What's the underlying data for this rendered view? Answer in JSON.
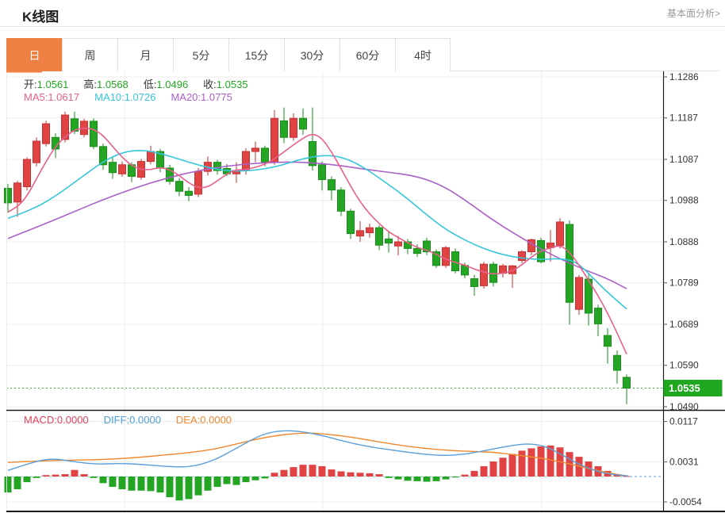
{
  "header": {
    "title": "K线图",
    "link_label": "基本面分析>"
  },
  "toolbar": {
    "tabs": [
      {
        "label": "日",
        "active": true
      },
      {
        "label": "周",
        "active": false
      },
      {
        "label": "月",
        "active": false
      },
      {
        "label": "5分",
        "active": false
      },
      {
        "label": "15分",
        "active": false
      },
      {
        "label": "30分",
        "active": false
      },
      {
        "label": "60分",
        "active": false
      },
      {
        "label": "4时",
        "active": false
      }
    ]
  },
  "legend": {
    "ohlc": [
      {
        "label": "开:",
        "value": "1.0561"
      },
      {
        "label": "高:",
        "value": "1.0568"
      },
      {
        "label": "低:",
        "value": "1.0496"
      },
      {
        "label": "收:",
        "value": "1.0535"
      }
    ],
    "ma": [
      {
        "label": "MA5:",
        "value": "1.0617",
        "color": "#e8608c"
      },
      {
        "label": "MA10:",
        "value": "1.0726",
        "color": "#36c6dc"
      },
      {
        "label": "MA20:",
        "value": "1.0775",
        "color": "#aa60c8"
      }
    ],
    "macd": [
      {
        "label": "MACD:",
        "value": "0.0000",
        "color": "#e0435c"
      },
      {
        "label": "DIFF:",
        "value": "0.0000",
        "color": "#4a9fd8"
      },
      {
        "label": "DEA:",
        "value": "0.0000",
        "color": "#f0882e"
      }
    ]
  },
  "colors": {
    "accent_orange": "#f08145",
    "up_red": "#e04343",
    "up_red_border": "#cc2f2f",
    "down_green": "#24a524",
    "down_green_border": "#168f16",
    "ohlc_value_green": "#21a81f",
    "ma5": "#e8608c",
    "ma10": "#36c6dc",
    "ma20": "#aa60c8",
    "diff_blue": "#5b9fd8",
    "dea_orange": "#f0882e",
    "price_badge_bg": "#1fa71f",
    "price_dash_green": "#35b035",
    "macd_zero_dash": "#8ad2b4",
    "grid": "#ececec",
    "axis_dark": "#1a1a1a",
    "axis_text": "#333333"
  },
  "chart_data": {
    "type": "candlestick",
    "title": "K线图 (日)",
    "price_axis_ticks": [
      "1.1286",
      "1.1187",
      "1.1087",
      "1.0988",
      "1.0888",
      "1.0789",
      "1.0689",
      "1.0590",
      "1.0490"
    ],
    "price_axis_values": [
      1.1286,
      1.1187,
      1.1087,
      1.0988,
      1.0888,
      1.0789,
      1.0689,
      1.059,
      1.049
    ],
    "price_range": [
      1.049,
      1.1286
    ],
    "current_price": 1.0535,
    "current_price_label": "1.0535",
    "last_candle": {
      "open": 1.0561,
      "high": 1.0568,
      "low": 1.0496,
      "close": 1.0535
    },
    "ma_values": {
      "ma5": 1.0617,
      "ma10": 1.0726,
      "ma20": 1.0775
    },
    "candles": [
      [
        1.1017,
        1.1028,
        1.0958,
        1.0982
      ],
      [
        1.0984,
        1.1035,
        1.0948,
        1.103
      ],
      [
        1.1021,
        1.1092,
        1.1012,
        1.1087
      ],
      [
        1.1079,
        1.114,
        1.107,
        1.1131
      ],
      [
        1.1125,
        1.118,
        1.1118,
        1.1173
      ],
      [
        1.114,
        1.115,
        1.109,
        1.1112
      ],
      [
        1.1135,
        1.1202,
        1.1128,
        1.1194
      ],
      [
        1.1185,
        1.1202,
        1.1148,
        1.1155
      ],
      [
        1.1147,
        1.1185,
        1.114,
        1.1179
      ],
      [
        1.1179,
        1.1186,
        1.1112,
        1.1118
      ],
      [
        1.1118,
        1.1125,
        1.1062,
        1.1074
      ],
      [
        1.108,
        1.1092,
        1.104,
        1.1055
      ],
      [
        1.1052,
        1.1082,
        1.1045,
        1.1074
      ],
      [
        1.1074,
        1.108,
        1.1032,
        1.1046
      ],
      [
        1.1044,
        1.1088,
        1.1038,
        1.1082
      ],
      [
        1.1082,
        1.112,
        1.1075,
        1.1106
      ],
      [
        1.1106,
        1.1112,
        1.1056,
        1.1066
      ],
      [
        1.1066,
        1.1074,
        1.1026,
        1.1034
      ],
      [
        1.1034,
        1.1042,
        1.0998,
        1.101
      ],
      [
        1.101,
        1.102,
        1.0986,
        1.1
      ],
      [
        1.1003,
        1.1066,
        1.0996,
        1.1058
      ],
      [
        1.1058,
        1.1094,
        1.1048,
        1.108
      ],
      [
        1.108,
        1.1086,
        1.105,
        1.106
      ],
      [
        1.1065,
        1.1076,
        1.1046,
        1.1052
      ],
      [
        1.1052,
        1.108,
        1.103,
        1.106
      ],
      [
        1.106,
        1.1114,
        1.105,
        1.1106
      ],
      [
        1.1106,
        1.113,
        1.108,
        1.1114
      ],
      [
        1.1114,
        1.112,
        1.107,
        1.108
      ],
      [
        1.108,
        1.1206,
        1.1074,
        1.1186
      ],
      [
        1.118,
        1.1212,
        1.1126,
        1.114
      ],
      [
        1.114,
        1.1198,
        1.1132,
        1.1186
      ],
      [
        1.1186,
        1.121,
        1.1146,
        1.116
      ],
      [
        1.113,
        1.1212,
        1.106,
        1.1072
      ],
      [
        1.1074,
        1.1082,
        1.1012,
        1.1038
      ],
      [
        1.1038,
        1.1046,
        1.0988,
        1.1013
      ],
      [
        1.1013,
        1.102,
        1.095,
        1.0962
      ],
      [
        1.0962,
        1.0968,
        1.0895,
        1.0908
      ],
      [
        1.0902,
        1.0938,
        1.0888,
        1.0915
      ],
      [
        1.091,
        1.0932,
        1.0898,
        1.0922
      ],
      [
        1.0922,
        1.0928,
        1.0868,
        1.088
      ],
      [
        1.0895,
        1.0915,
        1.0862,
        1.0885
      ],
      [
        1.0878,
        1.0902,
        1.0855,
        1.0888
      ],
      [
        1.0888,
        1.0895,
        1.0858,
        1.0872
      ],
      [
        1.0872,
        1.0882,
        1.0852,
        1.086
      ],
      [
        1.089,
        1.0898,
        1.0856,
        1.0864
      ],
      [
        1.0864,
        1.087,
        1.0825,
        1.0831
      ],
      [
        1.0831,
        1.0878,
        1.0825,
        1.0874
      ],
      [
        1.0864,
        1.0872,
        1.0812,
        1.0818
      ],
      [
        1.0831,
        1.0838,
        1.08,
        1.0808
      ],
      [
        1.0799,
        1.0808,
        1.0758,
        1.078
      ],
      [
        1.0782,
        1.084,
        1.0775,
        1.0834
      ],
      [
        1.0834,
        1.084,
        1.078,
        1.079
      ],
      [
        1.0812,
        1.0835,
        1.0802,
        1.083
      ],
      [
        1.0811,
        1.0832,
        1.0777,
        1.083
      ],
      [
        1.0843,
        1.0868,
        1.0836,
        1.0864
      ],
      [
        1.0864,
        1.0896,
        1.0856,
        1.0893
      ],
      [
        1.0891,
        1.0898,
        1.0836,
        1.084
      ],
      [
        1.0874,
        1.0917,
        1.084,
        1.0885
      ],
      [
        1.0879,
        1.0945,
        1.0872,
        1.0936
      ],
      [
        1.093,
        1.094,
        1.0688,
        1.0742
      ],
      [
        1.0725,
        1.0808,
        1.0712,
        1.0802
      ],
      [
        1.0798,
        1.0809,
        1.0686,
        1.0716
      ],
      [
        1.0728,
        1.0736,
        1.066,
        1.069
      ],
      [
        1.0662,
        1.068,
        1.0594,
        1.0636
      ],
      [
        1.0614,
        1.0626,
        1.0546,
        1.0578
      ],
      [
        1.0561,
        1.0568,
        1.0496,
        1.0535
      ]
    ],
    "ma5_points": [
      [
        10,
        1.096
      ],
      [
        22,
        1.0972
      ],
      [
        34,
        1.0998
      ],
      [
        46,
        1.104
      ],
      [
        58,
        1.1082
      ],
      [
        70,
        1.1118
      ],
      [
        82,
        1.1142
      ],
      [
        94,
        1.1158
      ],
      [
        106,
        1.1163
      ],
      [
        118,
        1.116
      ],
      [
        130,
        1.1145
      ],
      [
        142,
        1.1118
      ],
      [
        154,
        1.1092
      ],
      [
        166,
        1.1072
      ],
      [
        178,
        1.1062
      ],
      [
        190,
        1.1062
      ],
      [
        202,
        1.1068
      ],
      [
        214,
        1.1062
      ],
      [
        226,
        1.1048
      ],
      [
        238,
        1.103
      ],
      [
        250,
        1.1018
      ],
      [
        262,
        1.102
      ],
      [
        274,
        1.1035
      ],
      [
        286,
        1.1052
      ],
      [
        298,
        1.1062
      ],
      [
        310,
        1.1062
      ],
      [
        322,
        1.1068
      ],
      [
        334,
        1.1075
      ],
      [
        346,
        1.1088
      ],
      [
        358,
        1.1105
      ],
      [
        370,
        1.1122
      ],
      [
        382,
        1.1138
      ],
      [
        394,
        1.115
      ],
      [
        406,
        1.1138
      ],
      [
        418,
        1.1105
      ],
      [
        430,
        1.1065
      ],
      [
        442,
        1.1022
      ],
      [
        454,
        1.0985
      ],
      [
        466,
        1.0955
      ],
      [
        478,
        1.0932
      ],
      [
        490,
        1.0912
      ],
      [
        502,
        1.0898
      ],
      [
        514,
        1.0886
      ],
      [
        526,
        1.0874
      ],
      [
        538,
        1.0868
      ],
      [
        550,
        1.0858
      ],
      [
        562,
        1.0846
      ],
      [
        574,
        1.0838
      ],
      [
        586,
        1.0832
      ],
      [
        598,
        1.0822
      ],
      [
        610,
        1.0815
      ],
      [
        622,
        1.081
      ],
      [
        634,
        1.0812
      ],
      [
        646,
        1.0818
      ],
      [
        658,
        1.0832
      ],
      [
        670,
        1.0852
      ],
      [
        682,
        1.0866
      ],
      [
        694,
        1.0873
      ],
      [
        706,
        1.088
      ],
      [
        718,
        1.0864
      ],
      [
        730,
        1.0832
      ],
      [
        742,
        1.0795
      ],
      [
        754,
        1.0758
      ],
      [
        766,
        1.0716
      ],
      [
        778,
        1.0668
      ],
      [
        790,
        1.0617
      ]
    ],
    "ma10_points": [
      [
        10,
        1.0945
      ],
      [
        40,
        1.0965
      ],
      [
        70,
        1.0998
      ],
      [
        100,
        1.104
      ],
      [
        130,
        1.1082
      ],
      [
        155,
        1.1105
      ],
      [
        180,
        1.111
      ],
      [
        205,
        1.11
      ],
      [
        230,
        1.1085
      ],
      [
        260,
        1.1068
      ],
      [
        290,
        1.1058
      ],
      [
        320,
        1.106
      ],
      [
        350,
        1.107
      ],
      [
        375,
        1.1085
      ],
      [
        400,
        1.1096
      ],
      [
        425,
        1.1096
      ],
      [
        450,
        1.1078
      ],
      [
        480,
        1.104
      ],
      [
        510,
        1.0998
      ],
      [
        535,
        1.0958
      ],
      [
        560,
        1.092
      ],
      [
        590,
        1.0888
      ],
      [
        620,
        1.0864
      ],
      [
        650,
        1.085
      ],
      [
        680,
        1.0845
      ],
      [
        706,
        1.0848
      ],
      [
        727,
        1.084
      ],
      [
        747,
        1.0802
      ],
      [
        767,
        1.0764
      ],
      [
        790,
        1.0726
      ]
    ],
    "ma20_points": [
      [
        10,
        1.0896
      ],
      [
        50,
        1.0926
      ],
      [
        90,
        1.0958
      ],
      [
        130,
        1.099
      ],
      [
        170,
        1.1018
      ],
      [
        210,
        1.1042
      ],
      [
        250,
        1.106
      ],
      [
        290,
        1.1072
      ],
      [
        330,
        1.1079
      ],
      [
        370,
        1.1081
      ],
      [
        400,
        1.1078
      ],
      [
        430,
        1.1072
      ],
      [
        460,
        1.1063
      ],
      [
        490,
        1.1056
      ],
      [
        527,
        1.1046
      ],
      [
        560,
        1.1022
      ],
      [
        590,
        1.0984
      ],
      [
        620,
        1.0942
      ],
      [
        660,
        1.0894
      ],
      [
        700,
        1.0852
      ],
      [
        740,
        1.0818
      ],
      [
        765,
        1.08
      ],
      [
        790,
        1.0775
      ]
    ],
    "macd": {
      "axis_ticks": [
        "0.0117",
        "0.0031",
        "-0.0054"
      ],
      "axis_values": [
        0.0117,
        0.0031,
        -0.0054
      ],
      "histogram": [
        -0.0034,
        -0.0027,
        -0.0012,
        -0.0003,
        0.0003,
        0.0004,
        0.0005,
        0.0014,
        0.0005,
        -0.0003,
        -0.0014,
        -0.0022,
        -0.0027,
        -0.003,
        -0.003,
        -0.0031,
        -0.0034,
        -0.0044,
        -0.0051,
        -0.0048,
        -0.004,
        -0.003,
        -0.0022,
        -0.0016,
        -0.0018,
        -0.0012,
        -0.0008,
        -0.0004,
        0.0008,
        0.0014,
        0.002,
        0.0025,
        0.0025,
        0.0022,
        0.0015,
        0.0011,
        0.0009,
        0.0008,
        0.0007,
        0.0005,
        -0.0003,
        -0.0006,
        -0.0009,
        -0.001,
        -0.0011,
        -0.001,
        -0.0006,
        -0.0002,
        0.0004,
        0.0012,
        0.0022,
        0.0032,
        0.004,
        0.0048,
        0.0055,
        0.006,
        0.0064,
        0.0066,
        0.0062,
        0.0052,
        0.0042,
        0.0032,
        0.0022,
        0.0012,
        0.0005,
        0.0001
      ],
      "diff_points": [
        [
          10,
          0.0013
        ],
        [
          40,
          0.003
        ],
        [
          65,
          0.0039
        ],
        [
          95,
          0.0031
        ],
        [
          120,
          0.0026
        ],
        [
          150,
          0.0028
        ],
        [
          180,
          0.0026
        ],
        [
          210,
          0.0021
        ],
        [
          240,
          0.002
        ],
        [
          270,
          0.0034
        ],
        [
          300,
          0.0062
        ],
        [
          330,
          0.009
        ],
        [
          355,
          0.0098
        ],
        [
          380,
          0.0096
        ],
        [
          410,
          0.0086
        ],
        [
          440,
          0.0072
        ],
        [
          470,
          0.0062
        ],
        [
          500,
          0.0055
        ],
        [
          530,
          0.0048
        ],
        [
          560,
          0.0044
        ],
        [
          590,
          0.0048
        ],
        [
          620,
          0.0058
        ],
        [
          645,
          0.0066
        ],
        [
          665,
          0.007
        ],
        [
          685,
          0.0066
        ],
        [
          705,
          0.005
        ],
        [
          725,
          0.003
        ],
        [
          745,
          0.0015
        ],
        [
          765,
          0.0006
        ],
        [
          792,
          0.0001
        ]
      ],
      "dea_points": [
        [
          10,
          0.003
        ],
        [
          50,
          0.0033
        ],
        [
          90,
          0.0035
        ],
        [
          130,
          0.0036
        ],
        [
          170,
          0.004
        ],
        [
          210,
          0.0046
        ],
        [
          240,
          0.0051
        ],
        [
          270,
          0.0058
        ],
        [
          300,
          0.007
        ],
        [
          330,
          0.0082
        ],
        [
          360,
          0.009
        ],
        [
          390,
          0.0093
        ],
        [
          420,
          0.0089
        ],
        [
          450,
          0.0082
        ],
        [
          480,
          0.0073
        ],
        [
          510,
          0.0065
        ],
        [
          540,
          0.0059
        ],
        [
          570,
          0.0055
        ],
        [
          600,
          0.0053
        ],
        [
          620,
          0.0052
        ],
        [
          650,
          0.0046
        ],
        [
          680,
          0.004
        ],
        [
          710,
          0.003
        ],
        [
          740,
          0.0018
        ],
        [
          765,
          0.0008
        ],
        [
          792,
          0.0001
        ]
      ]
    }
  }
}
